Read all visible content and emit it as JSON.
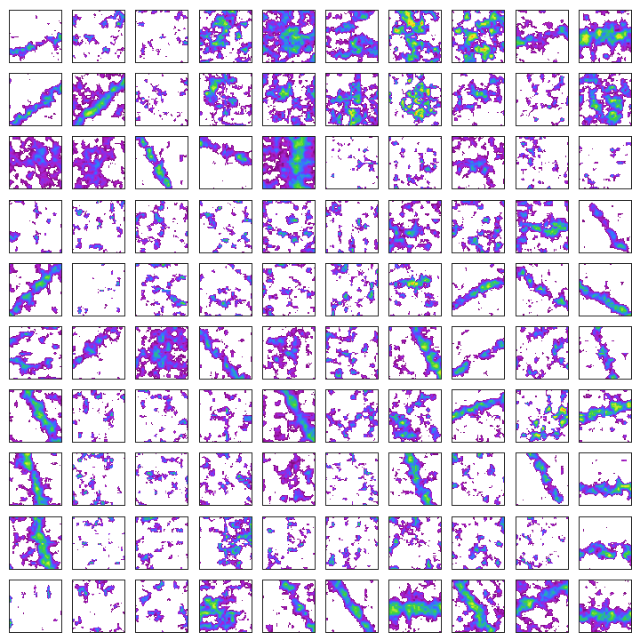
{
  "figure": {
    "rows": 10,
    "cols": 10,
    "background": "#ffffff",
    "frame_color": "#222222",
    "colormap": [
      "#7a0a7a",
      "#b01fc9",
      "#6a3bff",
      "#2f7bff",
      "#27b3a6",
      "#3bd13b",
      "#9ae62f",
      "#e6f02a",
      "#ffd21a",
      "#ff7a1a",
      "#ff2a1a"
    ],
    "panels": [
      {
        "coverage": 0.18,
        "intensity": 0.55,
        "pattern": "streak",
        "angle": -20,
        "seed": 1
      },
      {
        "coverage": 0.22,
        "intensity": 0.55,
        "pattern": "scatter",
        "angle": 0,
        "seed": 2
      },
      {
        "coverage": 0.12,
        "intensity": 0.4,
        "pattern": "scatter",
        "angle": 0,
        "seed": 3
      },
      {
        "coverage": 0.55,
        "intensity": 0.75,
        "pattern": "blob",
        "angle": 0,
        "seed": 4
      },
      {
        "coverage": 0.8,
        "intensity": 0.65,
        "pattern": "blob",
        "angle": 0,
        "seed": 5
      },
      {
        "coverage": 0.55,
        "intensity": 0.7,
        "pattern": "blob",
        "angle": 30,
        "seed": 6
      },
      {
        "coverage": 0.6,
        "intensity": 0.95,
        "pattern": "blob",
        "angle": 0,
        "seed": 7
      },
      {
        "coverage": 0.65,
        "intensity": 0.9,
        "pattern": "blob",
        "angle": 0,
        "seed": 8
      },
      {
        "coverage": 0.35,
        "intensity": 0.6,
        "pattern": "streak",
        "angle": -15,
        "seed": 9
      },
      {
        "coverage": 0.6,
        "intensity": 0.85,
        "pattern": "band",
        "angle": 0,
        "seed": 10
      },
      {
        "coverage": 0.25,
        "intensity": 0.6,
        "pattern": "streak",
        "angle": -35,
        "seed": 11
      },
      {
        "coverage": 0.55,
        "intensity": 0.7,
        "pattern": "streak",
        "angle": -40,
        "seed": 12
      },
      {
        "coverage": 0.15,
        "intensity": 0.45,
        "pattern": "scatter",
        "angle": 0,
        "seed": 13
      },
      {
        "coverage": 0.45,
        "intensity": 0.7,
        "pattern": "blob",
        "angle": 0,
        "seed": 14
      },
      {
        "coverage": 0.55,
        "intensity": 0.65,
        "pattern": "blob",
        "angle": 0,
        "seed": 15
      },
      {
        "coverage": 0.6,
        "intensity": 0.85,
        "pattern": "blob",
        "angle": 0,
        "seed": 16
      },
      {
        "coverage": 0.45,
        "intensity": 0.95,
        "pattern": "blob",
        "angle": 0,
        "seed": 17
      },
      {
        "coverage": 0.35,
        "intensity": 0.6,
        "pattern": "blob",
        "angle": 0,
        "seed": 18
      },
      {
        "coverage": 0.2,
        "intensity": 0.45,
        "pattern": "scatter",
        "angle": 0,
        "seed": 19
      },
      {
        "coverage": 0.65,
        "intensity": 0.7,
        "pattern": "blob",
        "angle": 0,
        "seed": 20
      },
      {
        "coverage": 0.65,
        "intensity": 0.35,
        "pattern": "blob",
        "angle": 0,
        "seed": 21
      },
      {
        "coverage": 0.55,
        "intensity": 0.35,
        "pattern": "blob",
        "angle": 0,
        "seed": 22
      },
      {
        "coverage": 0.25,
        "intensity": 0.6,
        "pattern": "streak",
        "angle": 60,
        "seed": 23
      },
      {
        "coverage": 0.22,
        "intensity": 0.6,
        "pattern": "streak",
        "angle": 20,
        "seed": 24
      },
      {
        "coverage": 0.9,
        "intensity": 0.6,
        "pattern": "band",
        "angle": 90,
        "seed": 25
      },
      {
        "coverage": 0.1,
        "intensity": 0.45,
        "pattern": "scatter",
        "angle": 0,
        "seed": 26
      },
      {
        "coverage": 0.2,
        "intensity": 0.5,
        "pattern": "scatter",
        "angle": 0,
        "seed": 27
      },
      {
        "coverage": 0.4,
        "intensity": 0.45,
        "pattern": "blob",
        "angle": 0,
        "seed": 28
      },
      {
        "coverage": 0.18,
        "intensity": 0.45,
        "pattern": "scatter",
        "angle": 0,
        "seed": 29
      },
      {
        "coverage": 0.1,
        "intensity": 0.45,
        "pattern": "scatter",
        "angle": 0,
        "seed": 30
      },
      {
        "coverage": 0.12,
        "intensity": 0.45,
        "pattern": "scatter",
        "angle": 0,
        "seed": 31
      },
      {
        "coverage": 0.18,
        "intensity": 0.5,
        "pattern": "scatter",
        "angle": 0,
        "seed": 32
      },
      {
        "coverage": 0.25,
        "intensity": 0.5,
        "pattern": "scatter",
        "angle": 0,
        "seed": 33
      },
      {
        "coverage": 0.2,
        "intensity": 0.6,
        "pattern": "scatter",
        "angle": 0,
        "seed": 34
      },
      {
        "coverage": 0.35,
        "intensity": 0.55,
        "pattern": "scatter",
        "angle": 0,
        "seed": 35
      },
      {
        "coverage": 0.22,
        "intensity": 0.55,
        "pattern": "scatter",
        "angle": 0,
        "seed": 36
      },
      {
        "coverage": 0.45,
        "intensity": 0.55,
        "pattern": "blob",
        "angle": 0,
        "seed": 37
      },
      {
        "coverage": 0.35,
        "intensity": 0.55,
        "pattern": "scatter",
        "angle": 0,
        "seed": 38
      },
      {
        "coverage": 0.5,
        "intensity": 0.6,
        "pattern": "blob",
        "angle": 0,
        "seed": 39
      },
      {
        "coverage": 0.2,
        "intensity": 0.45,
        "pattern": "streak",
        "angle": 55,
        "seed": 40
      },
      {
        "coverage": 0.4,
        "intensity": 0.6,
        "pattern": "streak",
        "angle": -45,
        "seed": 41
      },
      {
        "coverage": 0.05,
        "intensity": 0.45,
        "pattern": "scatter",
        "angle": 0,
        "seed": 42
      },
      {
        "coverage": 0.25,
        "intensity": 0.55,
        "pattern": "scatter",
        "angle": 0,
        "seed": 43
      },
      {
        "coverage": 0.2,
        "intensity": 0.5,
        "pattern": "scatter",
        "angle": 0,
        "seed": 44
      },
      {
        "coverage": 0.25,
        "intensity": 0.5,
        "pattern": "scatter",
        "angle": 0,
        "seed": 45
      },
      {
        "coverage": 0.25,
        "intensity": 0.55,
        "pattern": "scatter",
        "angle": 0,
        "seed": 46
      },
      {
        "coverage": 0.3,
        "intensity": 0.9,
        "pattern": "blob",
        "angle": 0,
        "seed": 47
      },
      {
        "coverage": 0.25,
        "intensity": 0.7,
        "pattern": "streak",
        "angle": -30,
        "seed": 48
      },
      {
        "coverage": 0.25,
        "intensity": 0.6,
        "pattern": "streak",
        "angle": 35,
        "seed": 49
      },
      {
        "coverage": 0.25,
        "intensity": 0.6,
        "pattern": "streak",
        "angle": 30,
        "seed": 50
      },
      {
        "coverage": 0.35,
        "intensity": 0.5,
        "pattern": "scatter",
        "angle": 0,
        "seed": 51
      },
      {
        "coverage": 0.25,
        "intensity": 0.5,
        "pattern": "streak",
        "angle": -40,
        "seed": 52
      },
      {
        "coverage": 0.7,
        "intensity": 0.45,
        "pattern": "blob",
        "angle": 0,
        "seed": 53
      },
      {
        "coverage": 0.3,
        "intensity": 0.55,
        "pattern": "streak",
        "angle": 50,
        "seed": 54
      },
      {
        "coverage": 0.4,
        "intensity": 0.45,
        "pattern": "blob",
        "angle": 0,
        "seed": 55
      },
      {
        "coverage": 0.3,
        "intensity": 0.5,
        "pattern": "scatter",
        "angle": 0,
        "seed": 56
      },
      {
        "coverage": 0.4,
        "intensity": 0.7,
        "pattern": "streak",
        "angle": 60,
        "seed": 57
      },
      {
        "coverage": 0.2,
        "intensity": 0.5,
        "pattern": "streak",
        "angle": -30,
        "seed": 58
      },
      {
        "coverage": 0.3,
        "intensity": 0.55,
        "pattern": "scatter",
        "angle": 0,
        "seed": 59
      },
      {
        "coverage": 0.2,
        "intensity": 0.55,
        "pattern": "streak",
        "angle": 70,
        "seed": 60
      },
      {
        "coverage": 0.4,
        "intensity": 0.6,
        "pattern": "streak",
        "angle": 60,
        "seed": 61
      },
      {
        "coverage": 0.18,
        "intensity": 0.45,
        "pattern": "scatter",
        "angle": 0,
        "seed": 62
      },
      {
        "coverage": 0.18,
        "intensity": 0.5,
        "pattern": "scatter",
        "angle": 0,
        "seed": 63
      },
      {
        "coverage": 0.22,
        "intensity": 0.5,
        "pattern": "scatter",
        "angle": 0,
        "seed": 64
      },
      {
        "coverage": 0.5,
        "intensity": 0.55,
        "pattern": "streak",
        "angle": 60,
        "seed": 65
      },
      {
        "coverage": 0.3,
        "intensity": 0.5,
        "pattern": "scatter",
        "angle": 0,
        "seed": 66
      },
      {
        "coverage": 0.45,
        "intensity": 0.7,
        "pattern": "blob",
        "angle": 0,
        "seed": 67
      },
      {
        "coverage": 0.3,
        "intensity": 0.7,
        "pattern": "streak",
        "angle": -20,
        "seed": 68
      },
      {
        "coverage": 0.35,
        "intensity": 0.9,
        "pattern": "blob",
        "angle": 0,
        "seed": 69
      },
      {
        "coverage": 0.35,
        "intensity": 0.75,
        "pattern": "streak",
        "angle": -15,
        "seed": 70
      },
      {
        "coverage": 0.4,
        "intensity": 0.7,
        "pattern": "streak",
        "angle": 70,
        "seed": 71
      },
      {
        "coverage": 0.22,
        "intensity": 0.55,
        "pattern": "scatter",
        "angle": 0,
        "seed": 72
      },
      {
        "coverage": 0.18,
        "intensity": 0.55,
        "pattern": "scatter",
        "angle": 0,
        "seed": 73
      },
      {
        "coverage": 0.25,
        "intensity": 0.5,
        "pattern": "scatter",
        "angle": 0,
        "seed": 74
      },
      {
        "coverage": 0.35,
        "intensity": 0.4,
        "pattern": "blob",
        "angle": 0,
        "seed": 75
      },
      {
        "coverage": 0.15,
        "intensity": 0.55,
        "pattern": "scatter",
        "angle": 0,
        "seed": 76
      },
      {
        "coverage": 0.35,
        "intensity": 0.65,
        "pattern": "streak",
        "angle": 70,
        "seed": 77
      },
      {
        "coverage": 0.18,
        "intensity": 0.55,
        "pattern": "scatter",
        "angle": 0,
        "seed": 78
      },
      {
        "coverage": 0.22,
        "intensity": 0.6,
        "pattern": "streak",
        "angle": 60,
        "seed": 79
      },
      {
        "coverage": 0.25,
        "intensity": 0.7,
        "pattern": "band",
        "angle": 0,
        "seed": 80
      },
      {
        "coverage": 0.5,
        "intensity": 0.7,
        "pattern": "streak",
        "angle": 75,
        "seed": 81
      },
      {
        "coverage": 0.1,
        "intensity": 0.55,
        "pattern": "scatter",
        "angle": 0,
        "seed": 82
      },
      {
        "coverage": 0.2,
        "intensity": 0.55,
        "pattern": "scatter",
        "angle": 0,
        "seed": 83
      },
      {
        "coverage": 0.4,
        "intensity": 0.6,
        "pattern": "blob",
        "angle": 0,
        "seed": 84
      },
      {
        "coverage": 0.18,
        "intensity": 0.55,
        "pattern": "scatter",
        "angle": 0,
        "seed": 85
      },
      {
        "coverage": 0.18,
        "intensity": 0.5,
        "pattern": "scatter",
        "angle": 0,
        "seed": 86
      },
      {
        "coverage": 0.28,
        "intensity": 0.55,
        "pattern": "scatter",
        "angle": 0,
        "seed": 87
      },
      {
        "coverage": 0.25,
        "intensity": 0.55,
        "pattern": "scatter",
        "angle": 0,
        "seed": 88
      },
      {
        "coverage": 0.15,
        "intensity": 0.55,
        "pattern": "scatter",
        "angle": 0,
        "seed": 89
      },
      {
        "coverage": 0.25,
        "intensity": 0.7,
        "pattern": "band",
        "angle": 0,
        "seed": 90
      },
      {
        "coverage": 0.05,
        "intensity": 0.6,
        "pattern": "scatter",
        "angle": 0,
        "seed": 91
      },
      {
        "coverage": 0.18,
        "intensity": 0.5,
        "pattern": "scatter",
        "angle": 0,
        "seed": 92
      },
      {
        "coverage": 0.2,
        "intensity": 0.45,
        "pattern": "scatter",
        "angle": 0,
        "seed": 93
      },
      {
        "coverage": 0.55,
        "intensity": 0.7,
        "pattern": "blob",
        "angle": 0,
        "seed": 94
      },
      {
        "coverage": 0.3,
        "intensity": 0.6,
        "pattern": "streak",
        "angle": 60,
        "seed": 95
      },
      {
        "coverage": 0.3,
        "intensity": 0.55,
        "pattern": "streak",
        "angle": 55,
        "seed": 96
      },
      {
        "coverage": 0.55,
        "intensity": 0.65,
        "pattern": "band",
        "angle": 0,
        "seed": 97
      },
      {
        "coverage": 0.55,
        "intensity": 0.75,
        "pattern": "streak",
        "angle": 60,
        "seed": 98
      },
      {
        "coverage": 0.55,
        "intensity": 0.7,
        "pattern": "streak",
        "angle": -25,
        "seed": 99
      },
      {
        "coverage": 0.45,
        "intensity": 0.7,
        "pattern": "band",
        "angle": 0,
        "seed": 100
      }
    ]
  }
}
